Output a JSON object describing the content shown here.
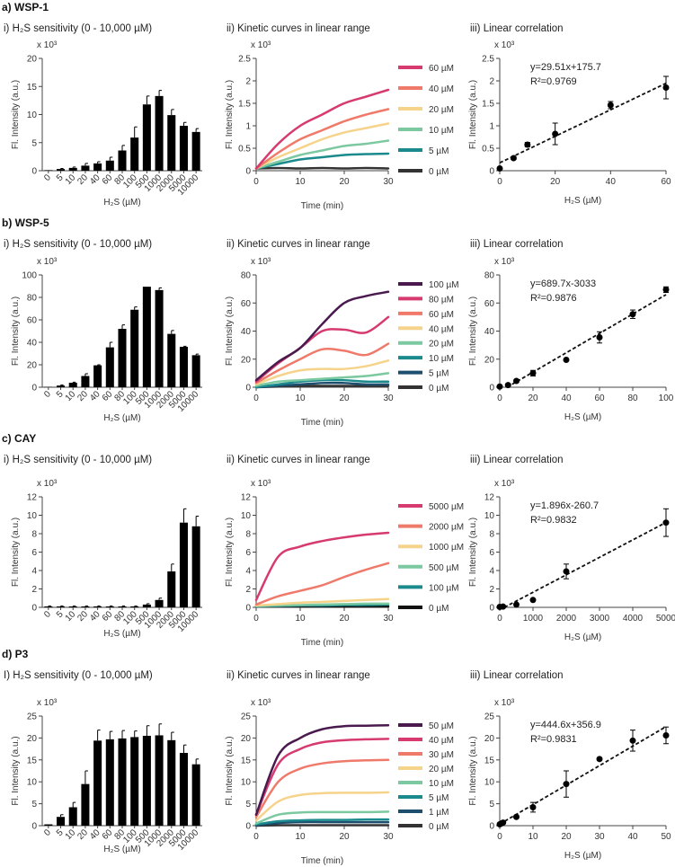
{
  "panels": [
    {
      "label": "a) WSP-1"
    },
    {
      "label": "b) WSP-5"
    },
    {
      "label": "c) CAY"
    },
    {
      "label": "d) P3"
    }
  ],
  "chart_data": [
    {
      "type": "bar",
      "title": "i) H₂S sensitivity (0 - 10,000 µM)",
      "y_multiplier": "x 10³",
      "ylabel": "Fl. Intensity (a.u.)",
      "xlabel": "H₂S (µM)",
      "categories": [
        "0",
        "5",
        "10",
        "20",
        "40",
        "60",
        "80",
        "100",
        "500",
        "1000",
        "2000",
        "5000",
        "10000"
      ],
      "values": [
        0.1,
        0.3,
        0.5,
        0.9,
        1.3,
        1.8,
        3.6,
        5.9,
        11.8,
        13.3,
        9.9,
        8.0,
        6.9
      ],
      "errors": [
        0,
        0.1,
        0.15,
        0.4,
        0.3,
        0.6,
        0.9,
        1.9,
        1.5,
        1.0,
        1.0,
        0.6,
        0.6
      ],
      "ylim": [
        0,
        20
      ],
      "yticks": [
        0,
        5,
        10,
        15,
        20
      ],
      "color": "#000000"
    },
    {
      "type": "line",
      "title": "ii) Kinetic curves in linear range",
      "y_multiplier": "x 10³",
      "ylabel": "Fl. Intensity (a.u.)",
      "xlabel": "Time (min)",
      "x": [
        0,
        5,
        10,
        15,
        20,
        25,
        30
      ],
      "xlim": [
        0,
        30
      ],
      "xticks": [
        0,
        10,
        20,
        30
      ],
      "ylim": [
        0,
        2.5
      ],
      "yticks": [
        0,
        0.5,
        1,
        1.5,
        2,
        2.5
      ],
      "series": [
        {
          "name": "60 µM",
          "color": "#d63a6e",
          "values": [
            0.05,
            0.6,
            1.0,
            1.25,
            1.5,
            1.65,
            1.8
          ]
        },
        {
          "name": "40 µM",
          "color": "#ef7a6a",
          "values": [
            0.05,
            0.4,
            0.7,
            0.9,
            1.1,
            1.25,
            1.37
          ]
        },
        {
          "name": "20 µM",
          "color": "#f6d38b",
          "values": [
            0.05,
            0.3,
            0.5,
            0.7,
            0.85,
            0.95,
            1.05
          ]
        },
        {
          "name": "10 µM",
          "color": "#7cc8a0",
          "values": [
            0.05,
            0.2,
            0.35,
            0.45,
            0.55,
            0.6,
            0.67
          ]
        },
        {
          "name": "5 µM",
          "color": "#1a8a8c",
          "values": [
            0.05,
            0.15,
            0.25,
            0.3,
            0.35,
            0.37,
            0.38
          ]
        },
        {
          "name": "0 µM",
          "color": "#333333",
          "values": [
            0.05,
            0.06,
            0.05,
            0.06,
            0.05,
            0.06,
            0.05
          ]
        }
      ]
    },
    {
      "type": "scatter",
      "title": "iii) Linear correlation",
      "y_multiplier": "x 10³",
      "ylabel": "Fl. Intensity (a.u.)",
      "xlabel": "H₂S (µM)",
      "x": [
        0,
        5,
        10,
        20,
        40,
        60
      ],
      "y": [
        0.05,
        0.28,
        0.58,
        0.82,
        1.46,
        1.85
      ],
      "errors": [
        0.02,
        0.03,
        0.05,
        0.24,
        0.08,
        0.25
      ],
      "xlim": [
        0,
        60
      ],
      "xticks": [
        0,
        20,
        40,
        60
      ],
      "ylim": [
        0,
        2.5
      ],
      "yticks": [
        0,
        0.5,
        1,
        1.5,
        2,
        2.5
      ],
      "fit": {
        "slope": 29.51,
        "intercept": 175.7,
        "equation": "y=29.51x+175.7",
        "r2": "R²=0.9769"
      }
    },
    {
      "type": "bar",
      "title": "i) H₂S sensitivity (0 - 10,000 µM)",
      "y_multiplier": "x 10³",
      "ylabel": "Fl. Intensity (a.u.)",
      "xlabel": "H₂S (µM)",
      "categories": [
        "0",
        "5",
        "10",
        "20",
        "40",
        "60",
        "80",
        "100",
        "500",
        "1000",
        "2000",
        "5000",
        "10000"
      ],
      "values": [
        0.3,
        1.5,
        4,
        10,
        19.5,
        35.5,
        52,
        69,
        89.5,
        86.5,
        47.5,
        36,
        28.5
      ],
      "errors": [
        0,
        0.5,
        0.5,
        2,
        0.5,
        4.5,
        3.5,
        2.5,
        0,
        2,
        3,
        0.5,
        1
      ],
      "ylim": [
        0,
        100
      ],
      "yticks": [
        0,
        20,
        40,
        60,
        80,
        100
      ],
      "color": "#000000"
    },
    {
      "type": "line",
      "title": "ii) Kinetic curves in linear range",
      "y_multiplier": "x 10³",
      "ylabel": "Fl. Intensity (a.u.)",
      "xlabel": "Time (min)",
      "x": [
        0,
        5,
        10,
        15,
        20,
        25,
        30
      ],
      "xlim": [
        0,
        30
      ],
      "xticks": [
        0,
        10,
        20,
        30
      ],
      "ylim": [
        0,
        80
      ],
      "yticks": [
        0,
        20,
        40,
        60,
        80
      ],
      "series": [
        {
          "name": "100 µM",
          "color": "#4a1a4f",
          "values": [
            5,
            18,
            28,
            45,
            60,
            65,
            68
          ]
        },
        {
          "name": "80 µM",
          "color": "#d63a6e",
          "values": [
            4,
            17,
            28,
            40,
            41,
            39,
            50
          ]
        },
        {
          "name": "60 µM",
          "color": "#ef7a6a",
          "values": [
            3,
            12,
            20,
            27,
            26,
            23,
            31
          ]
        },
        {
          "name": "40 µM",
          "color": "#f6d38b",
          "values": [
            2,
            8,
            12,
            13,
            13,
            15,
            19
          ]
        },
        {
          "name": "20 µM",
          "color": "#7cc8a0",
          "values": [
            1,
            4,
            5,
            6,
            7,
            8,
            10
          ]
        },
        {
          "name": "10 µM",
          "color": "#1a8a8c",
          "values": [
            0,
            2,
            4,
            5,
            5,
            4,
            4
          ]
        },
        {
          "name": "5 µM",
          "color": "#1d4e6e",
          "values": [
            0,
            1,
            2,
            3,
            3,
            2,
            2
          ]
        },
        {
          "name": "0 µM",
          "color": "#333333",
          "values": [
            0,
            0.5,
            1,
            1,
            1,
            1,
            1
          ]
        }
      ]
    },
    {
      "type": "scatter",
      "title": "iii) Linear correlation",
      "y_multiplier": "x 10³",
      "ylabel": "Fl. Intensity (a.u.)",
      "xlabel": "H₂S (µM)",
      "x": [
        0,
        5,
        10,
        20,
        40,
        60,
        80,
        100
      ],
      "y": [
        0.5,
        1.5,
        4.5,
        10,
        19.5,
        35.5,
        52,
        69.5
      ],
      "errors": [
        0,
        0.5,
        1,
        2,
        0.5,
        4,
        3,
        2
      ],
      "xlim": [
        0,
        100
      ],
      "xticks": [
        0,
        20,
        40,
        60,
        80,
        100
      ],
      "ylim": [
        0,
        80
      ],
      "yticks": [
        0,
        20,
        40,
        60,
        80
      ],
      "fit": {
        "slope": 689.7,
        "intercept": -3033,
        "equation": "y=689.7x-3033",
        "r2": "R²=0.9876"
      }
    },
    {
      "type": "bar",
      "title": "i) H₂S sensitivity (0 - 10,000 µM)",
      "y_multiplier": "x 10³",
      "ylabel": "Fl. Intensity (a.u.)",
      "xlabel": "H₂S (µM)",
      "categories": [
        "0",
        "5",
        "10",
        "20",
        "40",
        "60",
        "80",
        "100",
        "500",
        "1000",
        "2000",
        "5000",
        "10000"
      ],
      "values": [
        0.1,
        0.1,
        0.1,
        0.1,
        0.1,
        0.1,
        0.1,
        0.1,
        0.3,
        0.8,
        3.9,
        9.2,
        8.8
      ],
      "errors": [
        0.05,
        0.05,
        0.05,
        0.05,
        0.05,
        0.05,
        0.05,
        0.05,
        0.1,
        0.2,
        0.8,
        1.5,
        1.1
      ],
      "ylim": [
        0,
        12
      ],
      "yticks": [
        0,
        2,
        4,
        6,
        8,
        10,
        12
      ],
      "color": "#000000"
    },
    {
      "type": "line",
      "title": "ii) Kinetic curves in linear range",
      "y_multiplier": "x 10³",
      "ylabel": "Fl. Intensity (a.u.)",
      "xlabel": "Time (min)",
      "x": [
        0,
        5,
        10,
        15,
        20,
        25,
        30
      ],
      "xlim": [
        0,
        30
      ],
      "xticks": [
        0,
        10,
        20,
        30
      ],
      "ylim": [
        0,
        12
      ],
      "yticks": [
        0,
        2,
        4,
        6,
        8,
        10,
        12
      ],
      "series": [
        {
          "name": "5000 µM",
          "color": "#d63a6e",
          "values": [
            0.8,
            5.5,
            6.6,
            7.2,
            7.6,
            7.9,
            8.1
          ]
        },
        {
          "name": "2000 µM",
          "color": "#ef7a6a",
          "values": [
            0.3,
            1.2,
            1.8,
            2.4,
            3.3,
            4.1,
            4.8
          ]
        },
        {
          "name": "1000 µM",
          "color": "#f6d38b",
          "values": [
            0.2,
            0.35,
            0.5,
            0.6,
            0.7,
            0.8,
            0.9
          ]
        },
        {
          "name": "500 µM",
          "color": "#7cc8a0",
          "values": [
            0.15,
            0.2,
            0.25,
            0.3,
            0.35,
            0.4,
            0.4
          ]
        },
        {
          "name": "100 µM",
          "color": "#1a8a8c",
          "values": [
            0.1,
            0.15,
            0.2,
            0.2,
            0.25,
            0.25,
            0.3
          ]
        },
        {
          "name": "0 µM",
          "color": "#111111",
          "values": [
            0.1,
            0.1,
            0.1,
            0.1,
            0.1,
            0.1,
            0.1
          ]
        }
      ]
    },
    {
      "type": "scatter",
      "title": "iii) Linear correlation",
      "y_multiplier": "x 10³",
      "ylabel": "Fl. Intensity (a.u.)",
      "xlabel": "H₂S (µM)",
      "x": [
        0,
        100,
        500,
        1000,
        2000,
        5000
      ],
      "y": [
        0.05,
        0.08,
        0.3,
        0.8,
        3.9,
        9.2
      ],
      "errors": [
        0,
        0,
        0.1,
        0.1,
        0.8,
        1.5
      ],
      "xlim": [
        0,
        5000
      ],
      "xticks": [
        0,
        1000,
        2000,
        3000,
        4000,
        5000
      ],
      "ylim": [
        0,
        12
      ],
      "yticks": [
        0,
        2,
        4,
        6,
        8,
        10,
        12
      ],
      "fit": {
        "slope": 1.896,
        "intercept": -260.7,
        "equation": "y=1.896x-260.7",
        "r2": "R²=0.9832"
      }
    },
    {
      "type": "bar",
      "title": "I) H₂S sensitivity (0 - 10,000 µM)",
      "y_multiplier": "x 10³",
      "ylabel": "Fl. Intensity (a.u.)",
      "xlabel": "H₂S (µM)",
      "categories": [
        "0",
        "5",
        "10",
        "20",
        "40",
        "60",
        "80",
        "100",
        "500",
        "1000",
        "2000",
        "5000",
        "10000"
      ],
      "values": [
        0.3,
        2.0,
        4.2,
        9.5,
        19.4,
        19.7,
        19.9,
        20.2,
        20.5,
        20.6,
        19.5,
        16.6,
        14.0
      ],
      "errors": [
        0,
        0.5,
        1.1,
        3,
        2.4,
        1.8,
        1.8,
        1.4,
        2.3,
        2.6,
        1.8,
        1.8,
        1.2
      ],
      "ylim": [
        0,
        25
      ],
      "yticks": [
        0,
        5,
        10,
        15,
        20,
        25
      ],
      "color": "#000000"
    },
    {
      "type": "line",
      "title": "ii) Kinetic curves in linear range",
      "y_multiplier": "x 10³",
      "ylabel": "Fl. Intensity (a.u.)",
      "xlabel": "Time (min)",
      "x": [
        0,
        5,
        10,
        15,
        20,
        25,
        30
      ],
      "xlim": [
        0,
        30
      ],
      "xticks": [
        0,
        10,
        20,
        30
      ],
      "ylim": [
        0,
        25
      ],
      "yticks": [
        0,
        5,
        10,
        15,
        20,
        25
      ],
      "series": [
        {
          "name": "50 µM",
          "color": "#4a1a4f",
          "values": [
            2.5,
            16,
            20,
            22,
            22.7,
            22.8,
            22.9
          ]
        },
        {
          "name": "40 µM",
          "color": "#d63a6e",
          "values": [
            2.5,
            14,
            17.5,
            19,
            19.5,
            19.7,
            19.8
          ]
        },
        {
          "name": "30 µM",
          "color": "#ef7a6a",
          "values": [
            2,
            10,
            13,
            14.2,
            14.7,
            14.9,
            15
          ]
        },
        {
          "name": "20 µM",
          "color": "#f6d38b",
          "values": [
            1.2,
            5.5,
            7,
            7.4,
            7.5,
            7.5,
            7.6
          ]
        },
        {
          "name": "10 µM",
          "color": "#7cc8a0",
          "values": [
            0.5,
            2.5,
            3,
            3.1,
            3.1,
            3.1,
            3.2
          ]
        },
        {
          "name": "5 µM",
          "color": "#1a8a8c",
          "values": [
            0.3,
            1,
            1.2,
            1.3,
            1.3,
            1.4,
            1.4
          ]
        },
        {
          "name": "1 µM",
          "color": "#1d4e6e",
          "values": [
            0.1,
            0.6,
            0.8,
            0.8,
            0.8,
            0.8,
            0.8
          ]
        },
        {
          "name": "0 µM",
          "color": "#333333",
          "values": [
            0,
            0.1,
            0.1,
            0.1,
            0.1,
            0.1,
            0.1
          ]
        }
      ]
    },
    {
      "type": "scatter",
      "title": "iii) Linear correlation",
      "y_multiplier": "x 10³",
      "ylabel": "Fl. Intensity (a.u.)",
      "xlabel": "H₂S (µM)",
      "x": [
        0,
        0.5,
        1,
        5,
        10,
        20,
        30,
        40,
        50
      ],
      "y": [
        0.3,
        0.5,
        0.7,
        2.0,
        4.2,
        9.5,
        15.2,
        19.4,
        20.6
      ],
      "errors": [
        0,
        0,
        0,
        0.3,
        1.1,
        3,
        0.3,
        2.4,
        1.9
      ],
      "xlim": [
        0,
        50
      ],
      "xticks": [
        0,
        10,
        20,
        30,
        40,
        50
      ],
      "ylim": [
        0,
        25
      ],
      "yticks": [
        0,
        5,
        10,
        15,
        20,
        25
      ],
      "fit": {
        "slope": 444.6,
        "intercept": 356.9,
        "equation": "y=444.6x+356.9",
        "r2": "R²=0.9831"
      }
    }
  ]
}
